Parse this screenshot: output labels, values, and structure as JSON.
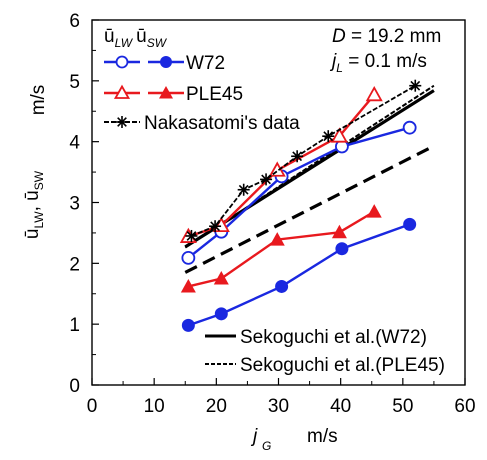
{
  "chart_data": {
    "type": "line",
    "xlabel": {
      "symbol": "j",
      "sub": "G",
      "unit": "m/s"
    },
    "ylabel": {
      "a": "ū",
      "a_sub": "LW",
      "sep": ", ",
      "b": "ū",
      "b_sub": "SW",
      "unit": "m/s"
    },
    "xlim": [
      0,
      60
    ],
    "ylim": [
      0,
      6
    ],
    "x_ticks": [
      0,
      10,
      20,
      30,
      40,
      50,
      60
    ],
    "y_ticks": [
      0,
      1,
      2,
      3,
      4,
      5,
      6
    ],
    "annotations": [
      {
        "symbol": "D",
        "text": " = 19.2 mm"
      },
      {
        "symbol": "j",
        "sub": "L",
        "text": " = 0.1 m/s"
      }
    ],
    "legend_header": {
      "a": "ū",
      "a_sub": "LW",
      "b": "ū",
      "b_sub": "SW"
    },
    "series": [
      {
        "name": "W72",
        "kind": "lw",
        "color": "#1a28e0",
        "marker": "circle-open",
        "x": [
          15.5,
          20.8,
          30.5,
          40.2,
          51.1
        ],
        "y": [
          2.09,
          2.52,
          3.43,
          3.92,
          4.23
        ]
      },
      {
        "name": "W72",
        "kind": "sw",
        "color": "#1a28e0",
        "marker": "circle-filled",
        "x": [
          15.5,
          20.8,
          30.5,
          40.2,
          51.1
        ],
        "y": [
          0.98,
          1.17,
          1.62,
          2.24,
          2.64
        ]
      },
      {
        "name": "PLE45",
        "kind": "lw",
        "color": "#e8191e",
        "marker": "triangle-open",
        "x": [
          15.5,
          20.8,
          29.8,
          39.8,
          45.4
        ],
        "y": [
          2.44,
          2.62,
          3.53,
          4.09,
          4.77
        ]
      },
      {
        "name": "PLE45",
        "kind": "sw",
        "color": "#e8191e",
        "marker": "triangle-filled",
        "x": [
          15.5,
          20.8,
          29.8,
          39.8,
          45.4
        ],
        "y": [
          1.62,
          1.75,
          2.39,
          2.51,
          2.85
        ]
      },
      {
        "name": "Nakasatomi's data",
        "kind": "ref",
        "color": "#000000",
        "marker": "asterisk",
        "x": [
          16.0,
          19.8,
          24.4,
          28.0,
          33.0,
          38.0,
          52.0
        ],
        "y": [
          2.45,
          2.61,
          3.21,
          3.38,
          3.76,
          4.09,
          4.92
        ]
      },
      {
        "name": "Sekoguchi et al.(W72)",
        "kind": "fit",
        "color": "#000000",
        "dash": "solid",
        "x": [
          15.0,
          55.0
        ],
        "y": [
          2.27,
          4.84
        ]
      },
      {
        "name": "",
        "kind": "fit",
        "color": "#000000",
        "dash": "long-dash",
        "x": [
          15.0,
          55.0
        ],
        "y": [
          1.85,
          3.93
        ]
      },
      {
        "name": "Sekoguchi et al.(PLE45)",
        "kind": "fit",
        "color": "#000000",
        "dash": "short-dash",
        "x": [
          15.0,
          55.0
        ],
        "y": [
          2.26,
          4.92
        ]
      }
    ]
  }
}
